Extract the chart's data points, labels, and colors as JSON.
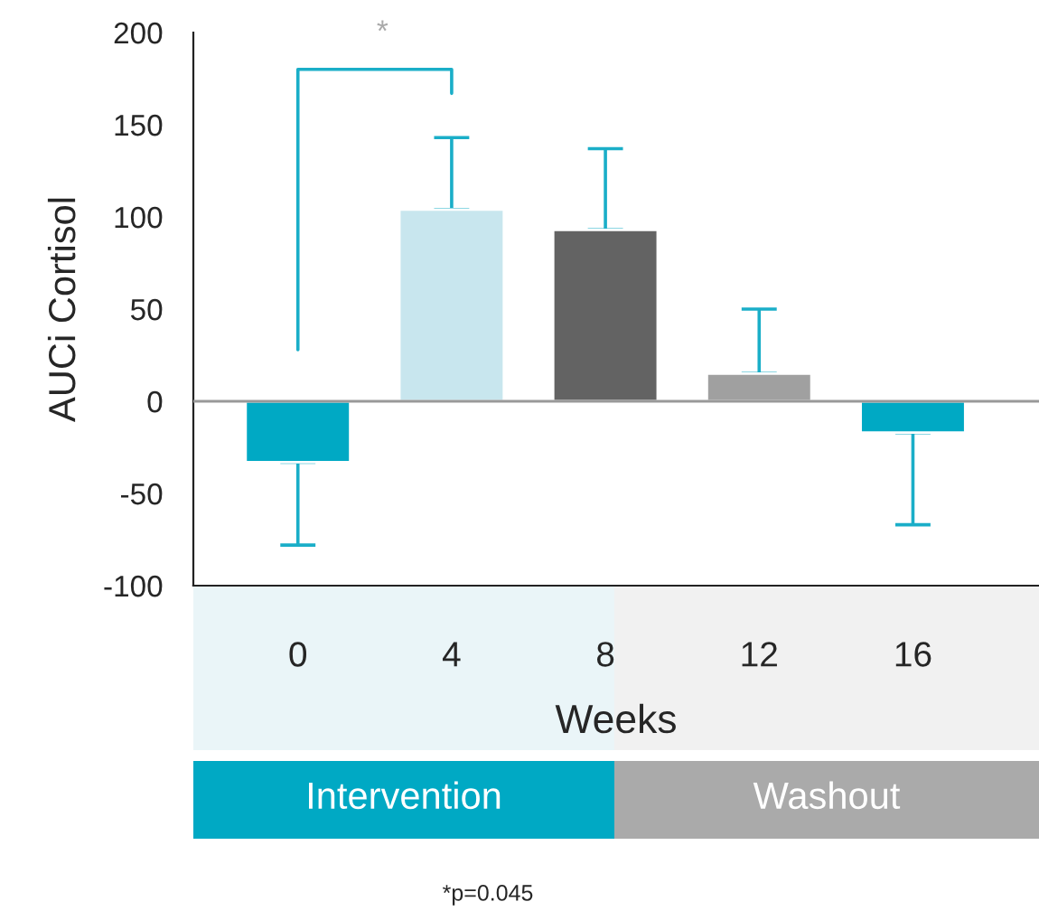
{
  "chart_data": {
    "type": "bar",
    "xlabel": "Weeks",
    "ylabel": "AUCi Cortisol",
    "categories": [
      "0",
      "4",
      "8",
      "12",
      "16"
    ],
    "values": [
      -33,
      104,
      93,
      15,
      -17
    ],
    "colors": [
      "#00a9c4",
      "#c8e6ee",
      "#636363",
      "#a0a0a0",
      "#00a9c4"
    ],
    "errors": [
      [
        -78,
        -33
      ],
      [
        104,
        143
      ],
      [
        93,
        137
      ],
      [
        15,
        50
      ],
      [
        -67,
        -17
      ]
    ],
    "ylim": [
      -100,
      200
    ],
    "yticks": [
      -100,
      -50,
      0,
      50,
      100,
      150,
      200
    ],
    "ref_lines": [
      {
        "axis": "y",
        "value": 0,
        "color": "#999999"
      }
    ],
    "grid": false,
    "annotations": [
      "*",
      "Intervention",
      "Washout",
      "*p=0.045"
    ]
  }
}
